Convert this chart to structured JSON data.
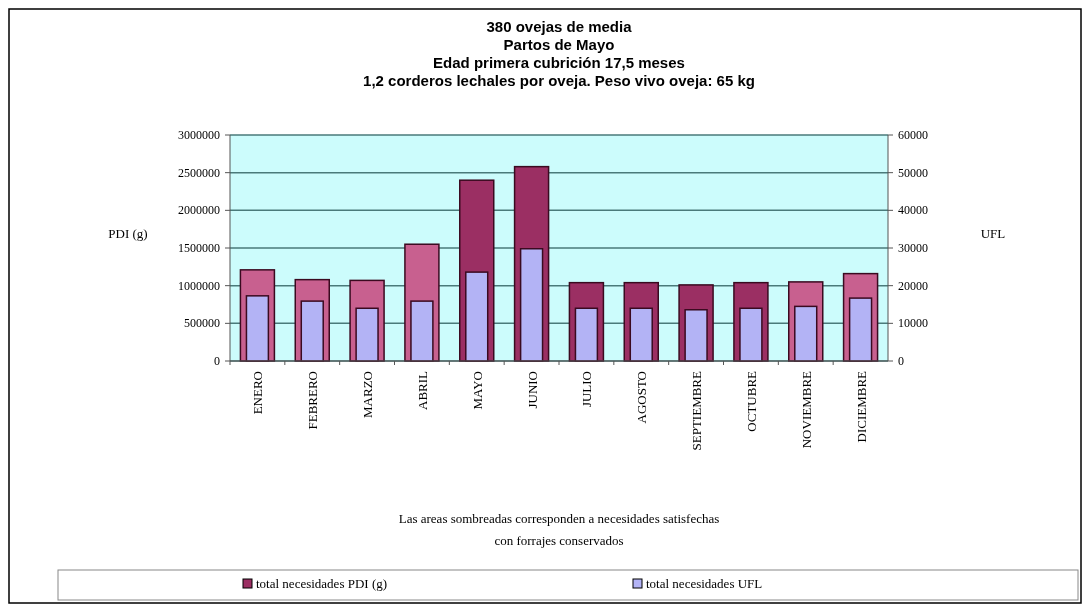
{
  "chart_data": {
    "type": "bar",
    "title": "380 ovejas de media\nPartos de Mayo\nEdad primera cubrición 17,5 meses\n1,2 corderos lechales por oveja. Peso vivo oveja: 65 kg",
    "ylabel": "PDI (g)",
    "y2label": "UFL",
    "categories": [
      "ENERO",
      "FEBRERO",
      "MARZO",
      "ABRIL",
      "MAYO",
      "JUNIO",
      "JULIO",
      "AGOSTO",
      "SEPTIEMBRE",
      "OCTUBRE",
      "NOVIEMBRE",
      "DICIEMBRE"
    ],
    "series": [
      {
        "name": "total necesidades PDI (g)",
        "color": "#9b2f63",
        "colors": [
          "#c8608f",
          "#c8608f",
          "#c8608f",
          "#c8608f",
          "#9b2f63",
          "#9b2f63",
          "#9b2f63",
          "#9b2f63",
          "#9b2f63",
          "#9b2f63",
          "#c8608f",
          "#c8608f"
        ],
        "values": [
          1210000,
          1080000,
          1070000,
          1550000,
          2400000,
          2580000,
          1040000,
          1040000,
          1010000,
          1040000,
          1050000,
          1160000
        ]
      },
      {
        "name": "total necesidades UFL",
        "color": "#b3b3f5",
        "axis": "y2",
        "values": [
          17300,
          15900,
          14000,
          15900,
          23600,
          29800,
          14000,
          14000,
          13600,
          14000,
          14500,
          16700
        ]
      }
    ],
    "ylim": [
      0,
      3000000
    ],
    "yticks": [
      0,
      500000,
      1000000,
      1500000,
      2000000,
      2500000,
      3000000
    ],
    "y2lim": [
      0,
      60000
    ],
    "y2ticks": [
      0,
      10000,
      20000,
      30000,
      40000,
      50000,
      60000
    ],
    "grid": "y",
    "legend": "bottom",
    "annotations": [
      "Las areas sombreadas  corresponden  a necesidades satisfechas\ncon  forrajes conservados"
    ]
  }
}
